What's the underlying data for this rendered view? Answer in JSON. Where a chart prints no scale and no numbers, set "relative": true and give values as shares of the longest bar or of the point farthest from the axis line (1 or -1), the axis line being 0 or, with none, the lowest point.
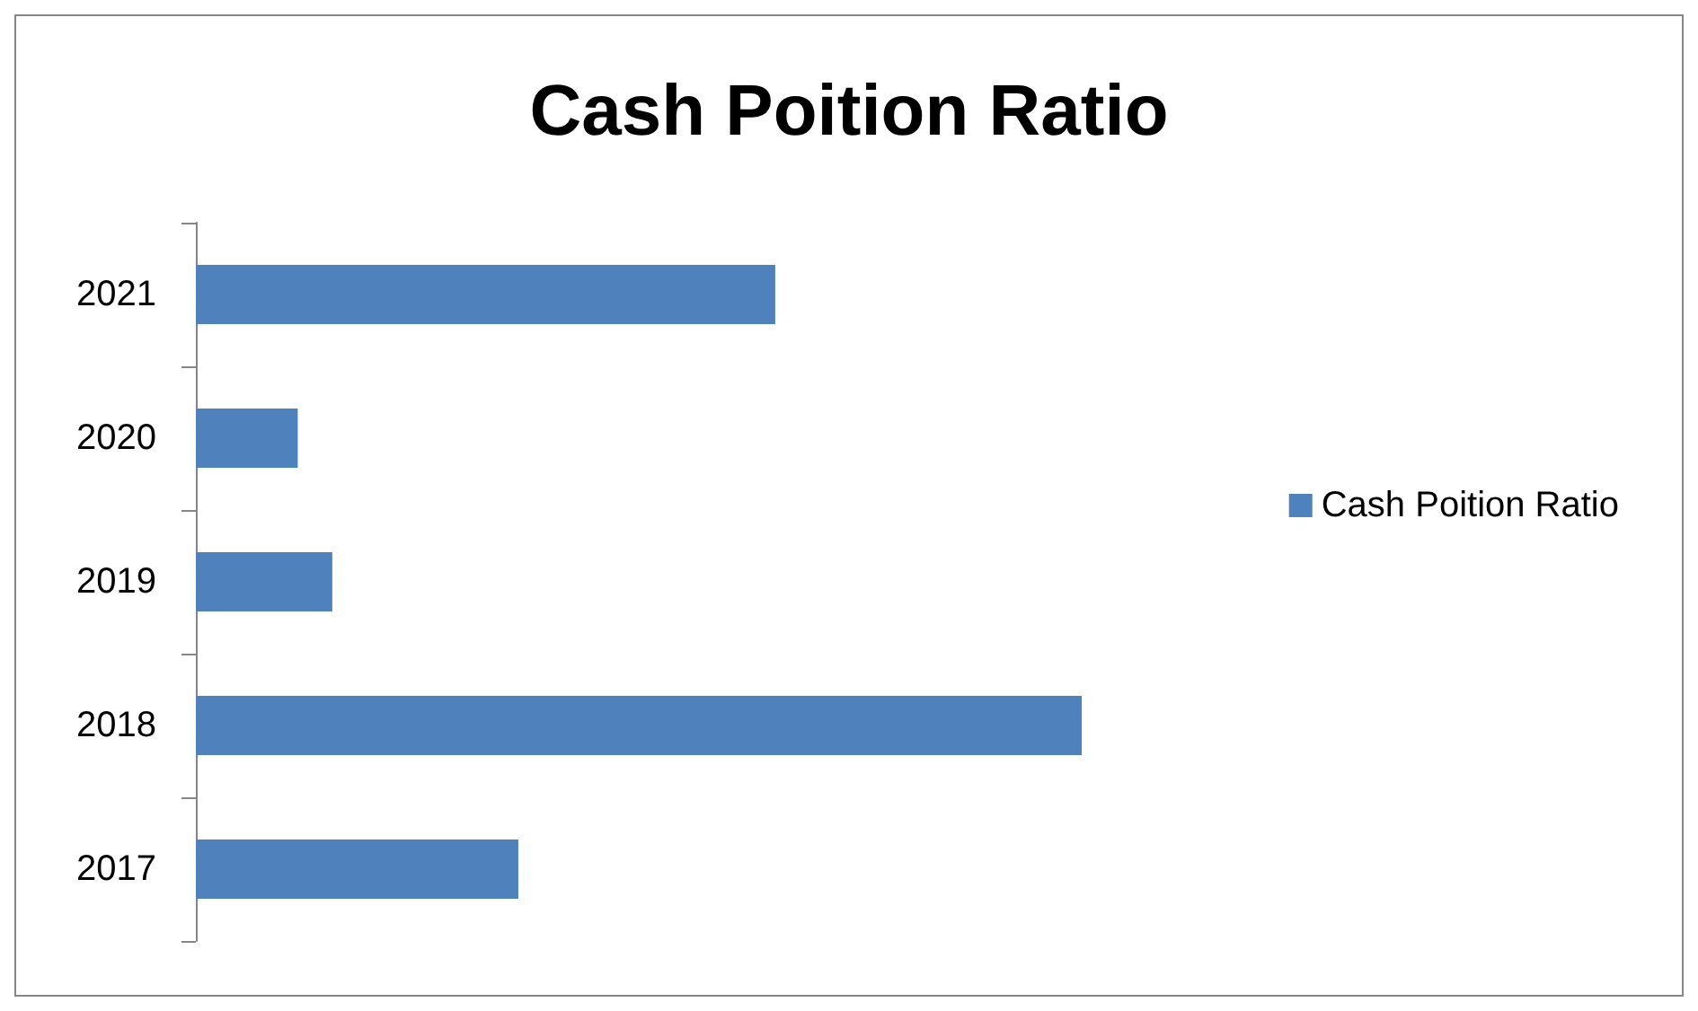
{
  "chart_data": {
    "type": "bar",
    "title": "Cash Poition Ratio",
    "orientation": "horizontal",
    "relative": true,
    "categories": [
      "2021",
      "2020",
      "2019",
      "2018",
      "2017"
    ],
    "series": [
      {
        "name": "Cash Poition Ratio",
        "color": "#4f81bd",
        "values": [
          0.654,
          0.115,
          0.154,
          1,
          0.364
        ]
      }
    ],
    "legend": "right"
  }
}
